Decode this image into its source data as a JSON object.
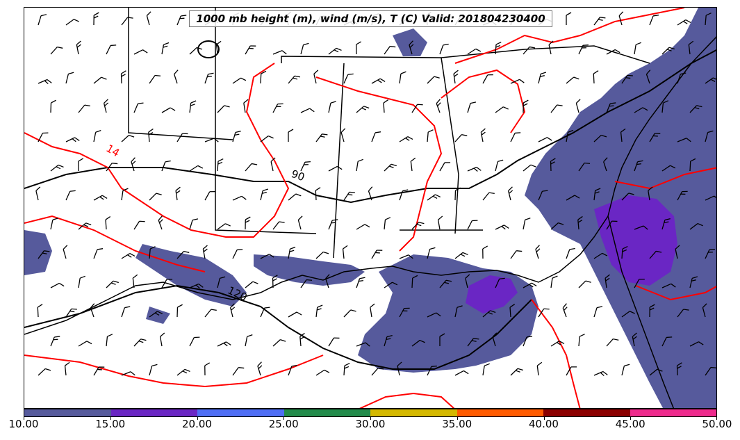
{
  "title": "1000 mb height (m), wind (m/s), T (C) Valid: 201804230400",
  "colors": {
    "fill_low": "#565a9c",
    "fill_mid": "#6a26c4",
    "temperature_contour": "#ff0000",
    "height_contour": "#000000",
    "land_water_boundary": "#000000"
  },
  "contour_labels": {
    "height_90": "90",
    "height_120": "120",
    "temp_14": "14"
  },
  "colorbar": {
    "colors": [
      "#565a9c",
      "#6a26c4",
      "#4f6ef5",
      "#228b4a",
      "#d4b800",
      "#ff5a00",
      "#8b0000",
      "#ee2a8c"
    ],
    "labels": [
      "10.00",
      "15.00",
      "20.00",
      "25.00",
      "30.00",
      "35.00",
      "40.00",
      "45.00",
      "50.00"
    ]
  }
}
